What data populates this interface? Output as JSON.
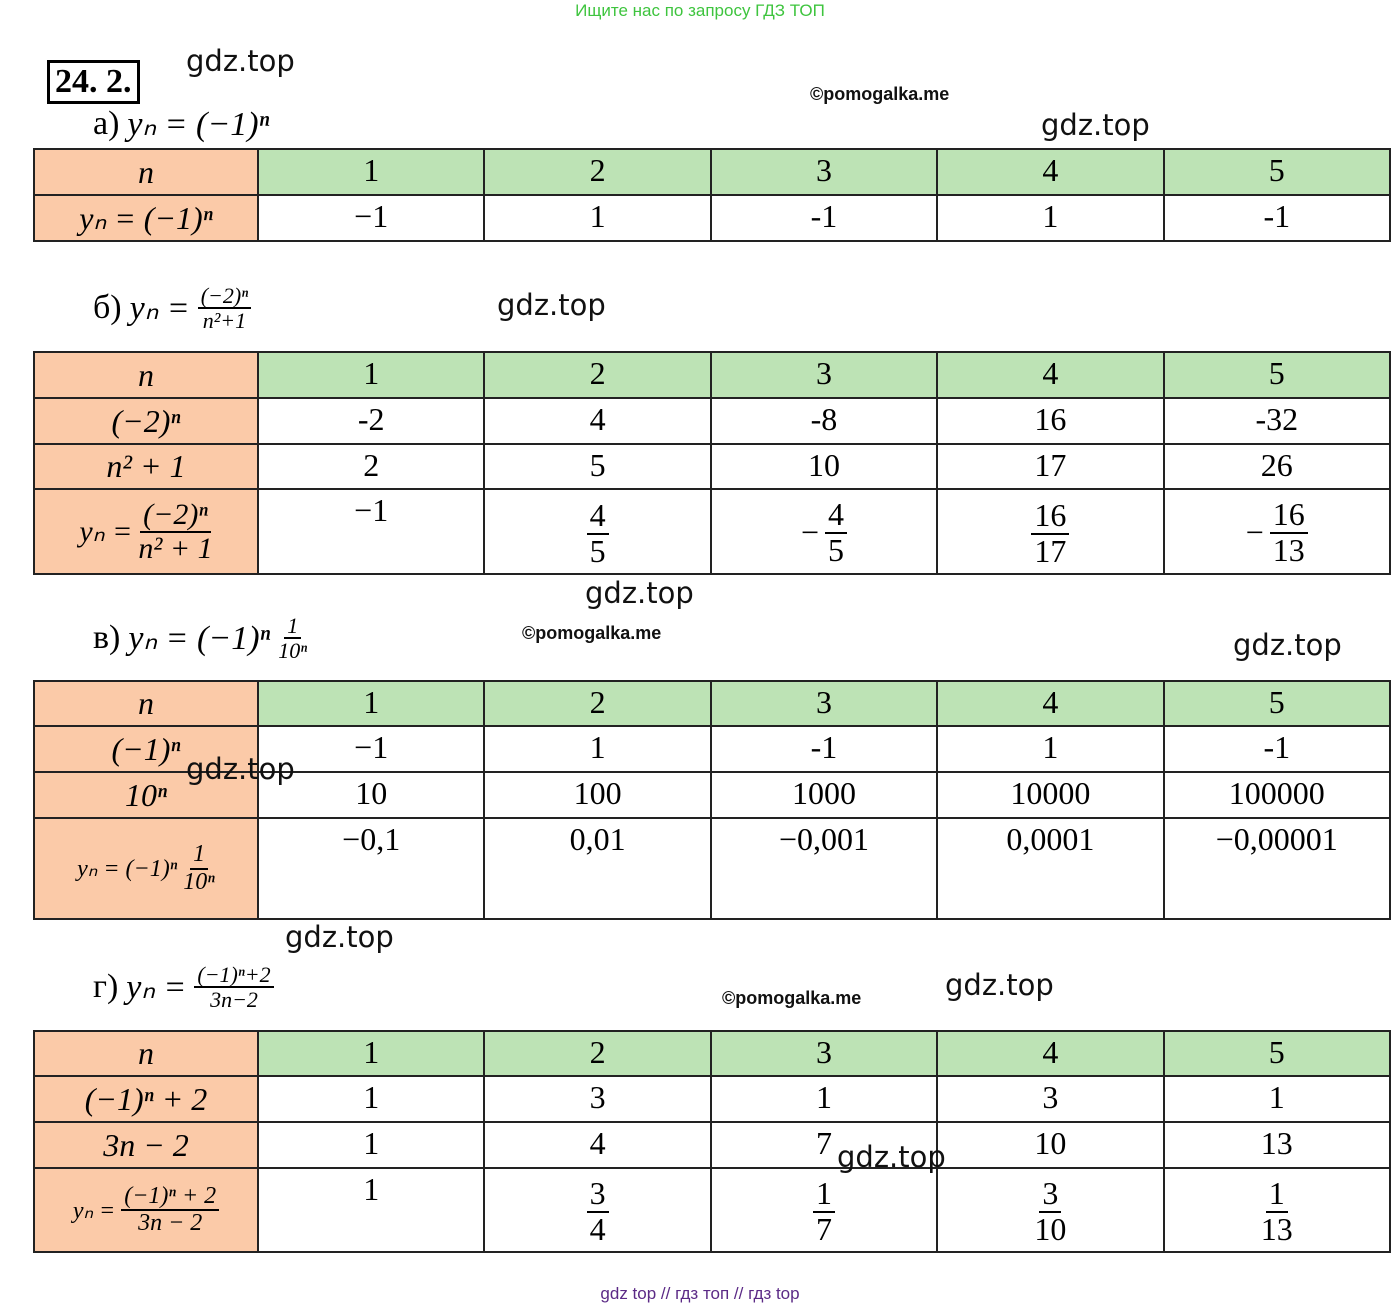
{
  "banner": "Ищите нас по запросу ГДЗ ТОП",
  "footer": "gdz top  //  гдз топ  //  гдз top",
  "problem_number": "24. 2.",
  "watermarks": [
    "gdz.top",
    "gdz.top",
    "gdz.top",
    "gdz.top",
    "gdz.top",
    "gdz.top",
    "gdz.top",
    "gdz.top",
    "gdz.top"
  ],
  "copyright": [
    "©pomogalka.me",
    "©pomogalka.me",
    "©pomogalka.me"
  ],
  "colors": {
    "header_left": "#fbcaa8",
    "header_top": "#bde3b5",
    "banner": "#3ec43e",
    "footer": "#5b2a86"
  },
  "parts": [
    {
      "label": "а)",
      "formula": "yₙ = (−1)ⁿ",
      "rows": [
        {
          "head": "n",
          "cells": [
            "1",
            "2",
            "3",
            "4",
            "5"
          ]
        },
        {
          "head": "yₙ = (−1)ⁿ",
          "cells": [
            "−1",
            "1",
            "-1",
            "1",
            "-1"
          ]
        }
      ]
    },
    {
      "label": "б)",
      "formula_lhs": "yₙ =",
      "formula_num": "(−2)ⁿ",
      "formula_den": "n²+1",
      "rows": [
        {
          "head": "n",
          "cells": [
            "1",
            "2",
            "3",
            "4",
            "5"
          ]
        },
        {
          "head": "(−2)ⁿ",
          "cells": [
            "-2",
            "4",
            "-8",
            "16",
            "-32"
          ]
        },
        {
          "head": "n² + 1",
          "cells": [
            "2",
            "5",
            "10",
            "17",
            "26"
          ]
        },
        {
          "head_lhs": "yₙ =",
          "head_num": "(−2)ⁿ",
          "head_den": "n² + 1",
          "cells": [
            {
              "text": "−1"
            },
            {
              "sign": "",
              "num": "4",
              "den": "5"
            },
            {
              "sign": "−",
              "num": "4",
              "den": "5"
            },
            {
              "sign": "",
              "num": "16",
              "den": "17"
            },
            {
              "sign": "−",
              "num": "16",
              "den": "13"
            }
          ]
        }
      ]
    },
    {
      "label": "в)",
      "formula_lhs": "yₙ = (−1)ⁿ",
      "formula_num": "1",
      "formula_den": "10ⁿ",
      "rows": [
        {
          "head": "n",
          "cells": [
            "1",
            "2",
            "3",
            "4",
            "5"
          ]
        },
        {
          "head": "(−1)ⁿ",
          "cells": [
            "−1",
            "1",
            "-1",
            "1",
            "-1"
          ]
        },
        {
          "head": "10ⁿ",
          "cells": [
            "10",
            "100",
            "1000",
            "10000",
            "100000"
          ]
        },
        {
          "head_lhs": "yₙ = (−1)ⁿ",
          "head_num": "1",
          "head_den": "10ⁿ",
          "cells": [
            "−0,1",
            "0,01",
            "−0,001",
            "0,0001",
            "−0,00001"
          ]
        }
      ]
    },
    {
      "label": "г)",
      "formula_lhs": "yₙ =",
      "formula_num": "(−1)ⁿ+2",
      "formula_den": "3n−2",
      "rows": [
        {
          "head": "n",
          "cells": [
            "1",
            "2",
            "3",
            "4",
            "5"
          ]
        },
        {
          "head": "(−1)ⁿ + 2",
          "cells": [
            "1",
            "3",
            "1",
            "3",
            "1"
          ]
        },
        {
          "head": "3n − 2",
          "cells": [
            "1",
            "4",
            "7",
            "10",
            "13"
          ]
        },
        {
          "head_lhs": "yₙ =",
          "head_num": "(−1)ⁿ + 2",
          "head_den": "3n − 2",
          "cells": [
            {
              "text": "1"
            },
            {
              "sign": "",
              "num": "3",
              "den": "4"
            },
            {
              "sign": "",
              "num": "1",
              "den": "7"
            },
            {
              "sign": "",
              "num": "3",
              "den": "10"
            },
            {
              "sign": "",
              "num": "1",
              "den": "13"
            }
          ]
        }
      ]
    }
  ]
}
